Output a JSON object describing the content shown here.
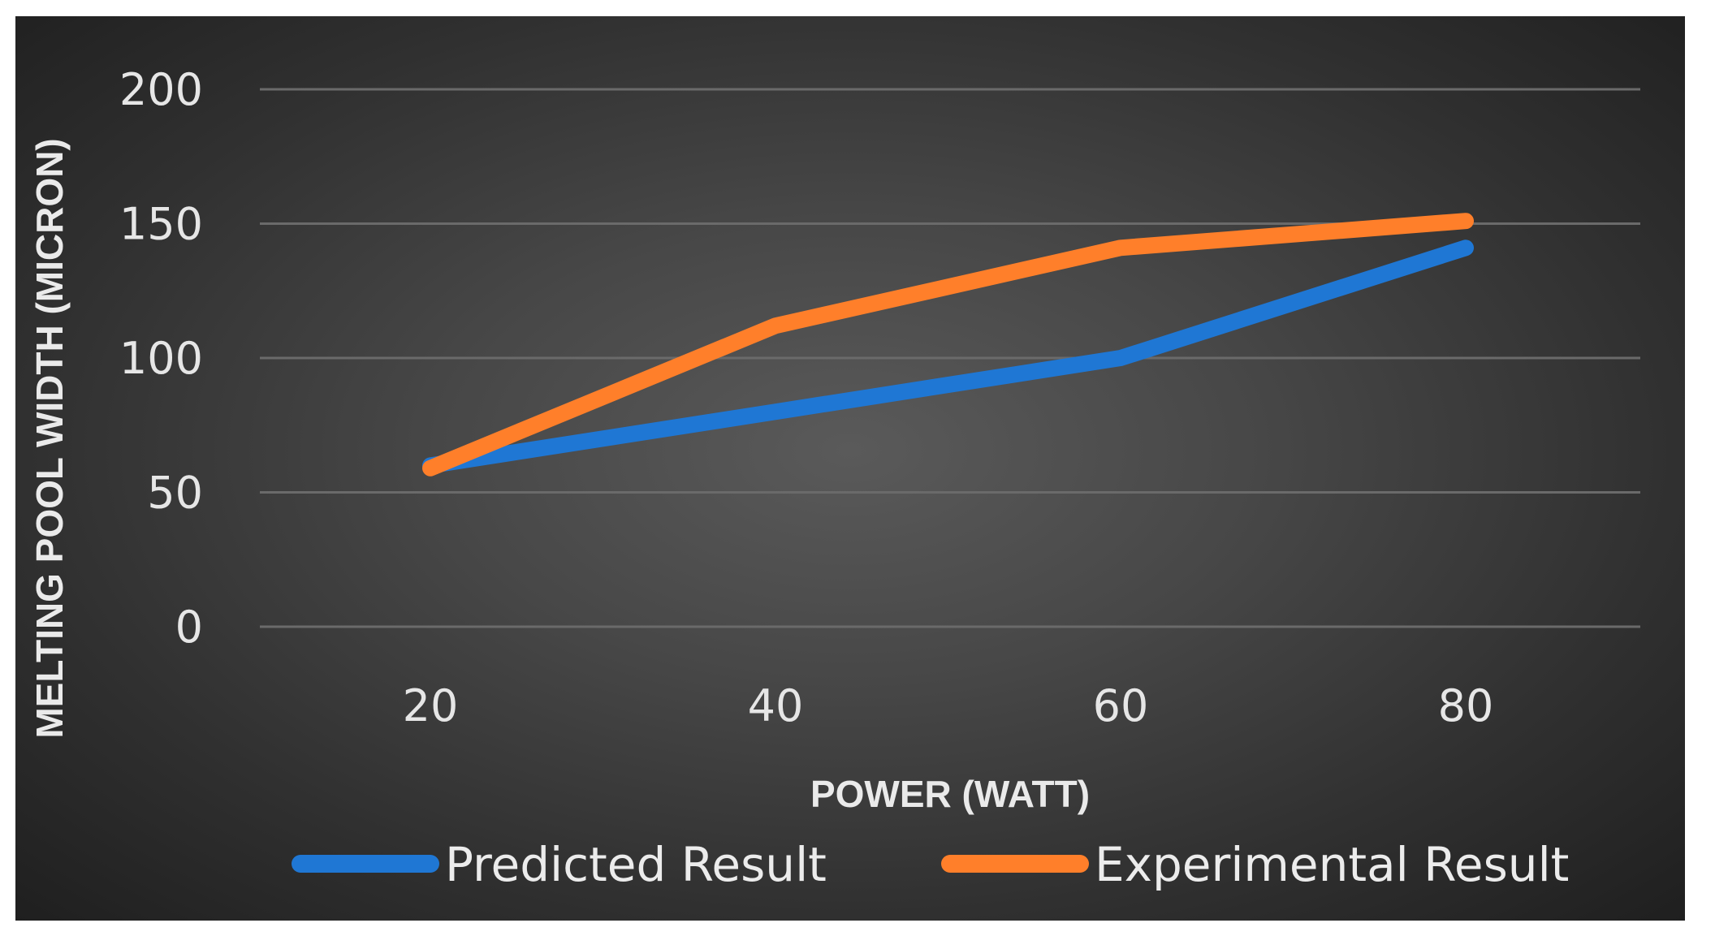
{
  "chart_data": {
    "type": "line",
    "categories": [
      "20",
      "40",
      "60",
      "80"
    ],
    "x": [
      20,
      40,
      60,
      80
    ],
    "series": [
      {
        "name": "Predicted Result",
        "values": [
          60,
          80,
          100,
          141
        ],
        "color": "#1f77d4"
      },
      {
        "name": "Experimental Result",
        "values": [
          59,
          112,
          141,
          151
        ],
        "color": "#ff7f2a"
      }
    ],
    "xlabel": "POWER (WATT)",
    "ylabel": "MELTING POOL WIDTH (MICRON)",
    "ylim": [
      0,
      200
    ],
    "yticks": [
      0,
      50,
      100,
      150,
      200
    ],
    "grid": true,
    "legend_position": "bottom",
    "background": "dark radial gradient"
  }
}
